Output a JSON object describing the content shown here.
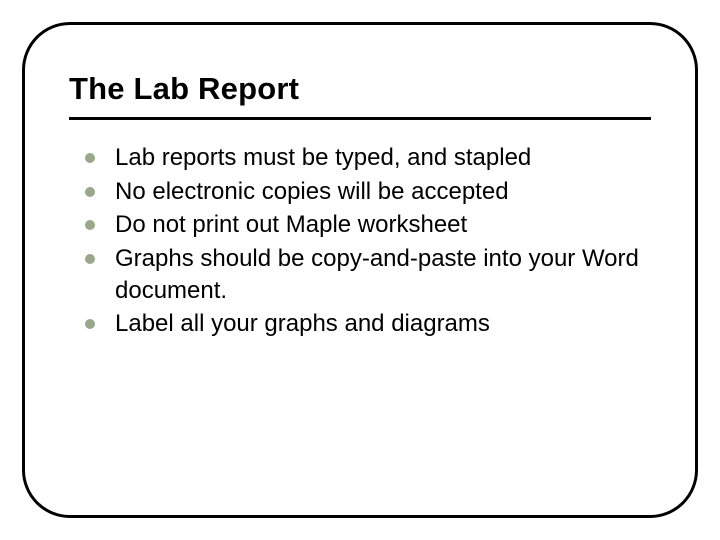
{
  "slide": {
    "title": "The Lab Report",
    "title_fontsize": 31,
    "title_color": "#000000",
    "title_underline_color": "#000000",
    "border_color": "#000000",
    "border_width": 3,
    "border_radius": 48,
    "background": "#ffffff",
    "bullets": {
      "marker_color": "#9aa88a",
      "marker_diameter": 10,
      "text_color": "#000000",
      "fontsize": 24,
      "line_height": 1.32,
      "items": [
        "Lab reports must be typed, and stapled",
        "No electronic copies will be accepted",
        "Do not print out Maple worksheet",
        "Graphs should be copy-and-paste into your Word document.",
        "Label all your graphs and diagrams"
      ]
    }
  }
}
